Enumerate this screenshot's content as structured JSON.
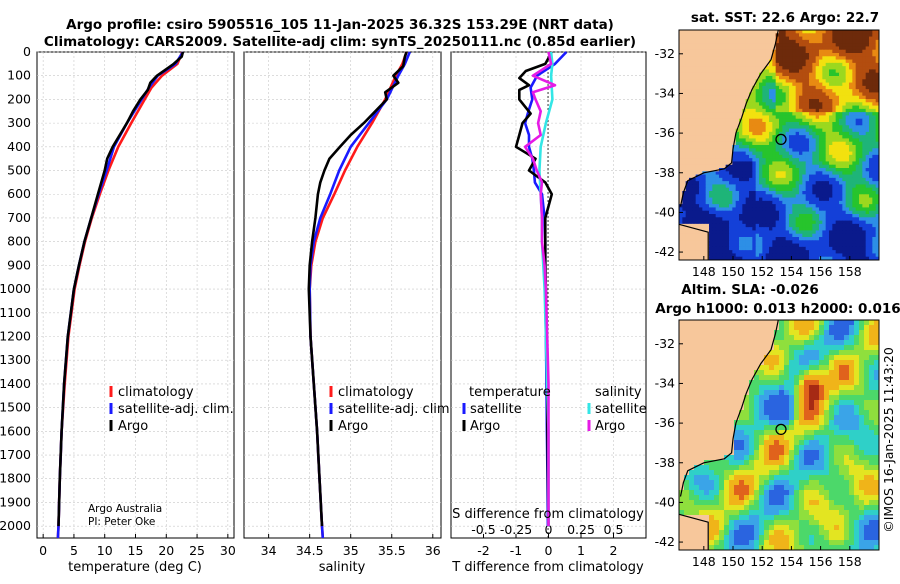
{
  "title": {
    "line1": "Argo profile: csiro 5905516_105 11-Jan-2025 36.32S 153.29E (NRT data)",
    "line2": "Climatology: CARS2009. Satellite-adj clim: synTS_20250111.nc (0.85d earlier)"
  },
  "credits": {
    "line1": "Argo Australia",
    "line2": "PI: Peter Oke"
  },
  "watermark": "©IMOS 16-Jan-2025 11:43:20",
  "colors": {
    "climatology": "#ff1a1a",
    "satellite": "#1a1aff",
    "argo": "#000000",
    "sal_satellite": "#33e6e6",
    "sal_argo": "#e61ae6",
    "land": "#f7c79b"
  },
  "chart_data": [
    {
      "type": "line",
      "xlabel": "temperature (deg C)",
      "xlim": [
        -1,
        31
      ],
      "xticks": [
        0,
        5,
        10,
        15,
        20,
        25,
        30
      ],
      "ylim": [
        0,
        2050
      ],
      "yticks": [
        0,
        100,
        200,
        300,
        400,
        500,
        600,
        700,
        800,
        900,
        1000,
        1100,
        1200,
        1300,
        1400,
        1500,
        1600,
        1700,
        1800,
        1900,
        2000
      ],
      "legend": [
        "climatology",
        "satellite-adj. clim.",
        "Argo"
      ],
      "series": [
        {
          "name": "climatology",
          "color": "#ff1a1a",
          "depth": [
            0,
            50,
            100,
            150,
            200,
            300,
            400,
            500,
            600,
            700,
            800,
            900,
            1000,
            1200,
            1400,
            1600,
            1800,
            2000,
            2050
          ],
          "values": [
            22.6,
            21.8,
            19.3,
            17.6,
            16.5,
            14.3,
            12.2,
            10.6,
            9.2,
            7.9,
            6.8,
            5.9,
            5.1,
            4.1,
            3.5,
            3.0,
            2.7,
            2.5,
            2.4
          ]
        },
        {
          "name": "satellite-adj. clim.",
          "color": "#1a1aff",
          "depth": [
            0,
            50,
            100,
            150,
            200,
            300,
            400,
            500,
            600,
            700,
            800,
            900,
            1000,
            1200,
            1400,
            1600,
            1800,
            2000,
            2050
          ],
          "values": [
            22.7,
            21.5,
            18.6,
            17.2,
            16.0,
            13.6,
            11.5,
            10.3,
            9.0,
            7.8,
            6.7,
            5.8,
            5.0,
            4.0,
            3.4,
            3.0,
            2.7,
            2.5,
            2.4
          ]
        },
        {
          "name": "Argo",
          "color": "#000000",
          "depth": [
            0,
            20,
            50,
            100,
            130,
            160,
            200,
            250,
            300,
            400,
            450,
            500,
            600,
            700,
            800,
            900,
            1000,
            1200,
            1400,
            1600,
            1800,
            2000
          ],
          "values": [
            22.7,
            22.5,
            21.2,
            18.5,
            17.4,
            17.0,
            15.8,
            14.6,
            13.6,
            11.3,
            10.4,
            10.0,
            8.9,
            7.8,
            6.7,
            5.8,
            5.0,
            4.0,
            3.4,
            3.0,
            2.7,
            2.5
          ]
        }
      ]
    },
    {
      "type": "line",
      "xlabel": "salinity",
      "xlim": [
        33.7,
        36.1
      ],
      "xticks": [
        34,
        34.5,
        35,
        35.5,
        36
      ],
      "ylim": [
        0,
        2050
      ],
      "legend": [
        "climatology",
        "satellite-adj. clim.",
        "Argo"
      ],
      "series": [
        {
          "name": "climatology",
          "color": "#ff1a1a",
          "depth": [
            0,
            50,
            100,
            200,
            300,
            400,
            500,
            600,
            700,
            800,
            900,
            1000,
            1200,
            1400,
            1600,
            1800,
            2000,
            2050
          ],
          "values": [
            35.68,
            35.63,
            35.55,
            35.42,
            35.26,
            35.08,
            34.93,
            34.8,
            34.66,
            34.57,
            34.52,
            34.5,
            34.51,
            34.55,
            34.59,
            34.62,
            34.65,
            34.66
          ]
        },
        {
          "name": "satellite-adj. clim.",
          "color": "#1a1aff",
          "depth": [
            0,
            50,
            100,
            200,
            300,
            400,
            500,
            600,
            700,
            800,
            900,
            1000,
            1200,
            1400,
            1600,
            1800,
            2000,
            2050
          ],
          "values": [
            35.72,
            35.66,
            35.58,
            35.44,
            35.22,
            35.0,
            34.86,
            34.75,
            34.63,
            34.55,
            34.51,
            34.5,
            34.51,
            34.55,
            34.59,
            34.62,
            34.65,
            34.66
          ]
        },
        {
          "name": "Argo",
          "color": "#000000",
          "depth": [
            0,
            20,
            60,
            100,
            130,
            170,
            200,
            250,
            300,
            350,
            400,
            450,
            500,
            550,
            600,
            700,
            800,
            900,
            1000,
            1200,
            1400,
            1600,
            1800,
            2000
          ],
          "values": [
            35.68,
            35.66,
            35.64,
            35.52,
            35.58,
            35.42,
            35.44,
            35.3,
            35.16,
            35.0,
            34.87,
            34.74,
            34.68,
            34.63,
            34.6,
            34.57,
            34.53,
            34.5,
            34.49,
            34.51,
            34.55,
            34.59,
            34.62,
            34.65
          ]
        }
      ]
    },
    {
      "type": "line",
      "xlabel": "T difference from climatology",
      "s_xlabel": "S difference from climatology",
      "xlim": [
        -3,
        3
      ],
      "xticks": [
        -2,
        -1,
        0,
        1,
        2
      ],
      "s_xticks": [
        "-0.5",
        "-0.25",
        "0",
        "0.25",
        "0.5"
      ],
      "s_tick_values": [
        -0.5,
        -0.25,
        0,
        0.25,
        0.5
      ],
      "s_scale_per_degree": 0.25,
      "ylim": [
        0,
        2050
      ],
      "legend_temperature": {
        "header": "temperature",
        "items": [
          "satellite",
          "Argo"
        ]
      },
      "legend_salinity": {
        "header": "salinity",
        "items": [
          "satellite",
          "Argo"
        ]
      },
      "series": [
        {
          "name": "T satellite",
          "color": "#1a1aff",
          "depth": [
            0,
            50,
            100,
            150,
            200,
            250,
            300,
            350,
            400,
            450,
            500,
            550,
            600,
            700,
            800,
            900,
            1000,
            1200,
            1400,
            1600,
            1800,
            2000
          ],
          "values": [
            0.55,
            0.2,
            -0.35,
            -0.55,
            -0.5,
            -0.62,
            -0.72,
            -0.6,
            -0.6,
            -0.5,
            -0.45,
            -0.42,
            -0.2,
            -0.12,
            -0.1,
            -0.1,
            -0.1,
            -0.08,
            -0.06,
            -0.05,
            -0.03,
            -0.02
          ]
        },
        {
          "name": "T Argo",
          "color": "#000000",
          "depth": [
            0,
            50,
            80,
            110,
            140,
            160,
            200,
            260,
            300,
            350,
            400,
            450,
            500,
            550,
            600,
            700,
            800,
            900,
            1000,
            1200,
            1400,
            1600,
            1800,
            2000
          ],
          "values": [
            0.1,
            -0.1,
            -0.7,
            -0.9,
            -0.6,
            -0.9,
            -0.9,
            -0.55,
            -0.8,
            -0.9,
            -1.0,
            -0.4,
            -0.6,
            -0.1,
            0.1,
            -0.1,
            -0.1,
            -0.1,
            -0.08,
            -0.06,
            -0.04,
            -0.03,
            -0.02,
            0.0
          ]
        },
        {
          "name": "S satellite",
          "color": "#33e6e6",
          "depth": [
            0,
            50,
            100,
            200,
            300,
            400,
            500,
            600,
            700,
            800,
            900,
            1000,
            1200,
            1400,
            1600,
            1800,
            2000
          ],
          "values": [
            0.02,
            0.03,
            0.02,
            0.03,
            -0.02,
            -0.06,
            -0.07,
            -0.06,
            -0.05,
            -0.05,
            -0.04,
            -0.03,
            -0.02,
            -0.01,
            0.0,
            0.0,
            0.0
          ]
        },
        {
          "name": "S Argo",
          "color": "#e61ae6",
          "depth": [
            0,
            50,
            100,
            140,
            170,
            200,
            250,
            300,
            350,
            400,
            450,
            500,
            550,
            600,
            700,
            800,
            900,
            1000,
            1200,
            1400,
            1600,
            1800,
            2000
          ],
          "values": [
            0.0,
            0.02,
            -0.12,
            0.05,
            -0.12,
            -0.1,
            -0.06,
            -0.08,
            -0.06,
            -0.18,
            -0.12,
            -0.09,
            -0.05,
            -0.06,
            -0.05,
            -0.05,
            -0.03,
            -0.02,
            -0.01,
            0.0,
            0.0,
            0.0,
            0.0
          ]
        }
      ]
    }
  ],
  "maps": {
    "sst": {
      "title": "sat. SST: 22.6 Argo: 22.7",
      "lat_ticks": [
        "-32",
        "-34",
        "-36",
        "-38",
        "-40",
        "-42"
      ],
      "lon_ticks": [
        "148",
        "150",
        "152",
        "154",
        "156",
        "158"
      ],
      "float_lat": -36.32,
      "float_lon": 153.29
    },
    "sla": {
      "title1": "Altim. SLA: -0.026",
      "title2": "Argo h1000: 0.013 h2000: 0.016",
      "lat_ticks": [
        "-32",
        "-34",
        "-36",
        "-38",
        "-40",
        "-42"
      ],
      "lon_ticks": [
        "148",
        "150",
        "152",
        "154",
        "156",
        "158"
      ],
      "float_lat": -36.32,
      "float_lon": 153.29
    }
  }
}
